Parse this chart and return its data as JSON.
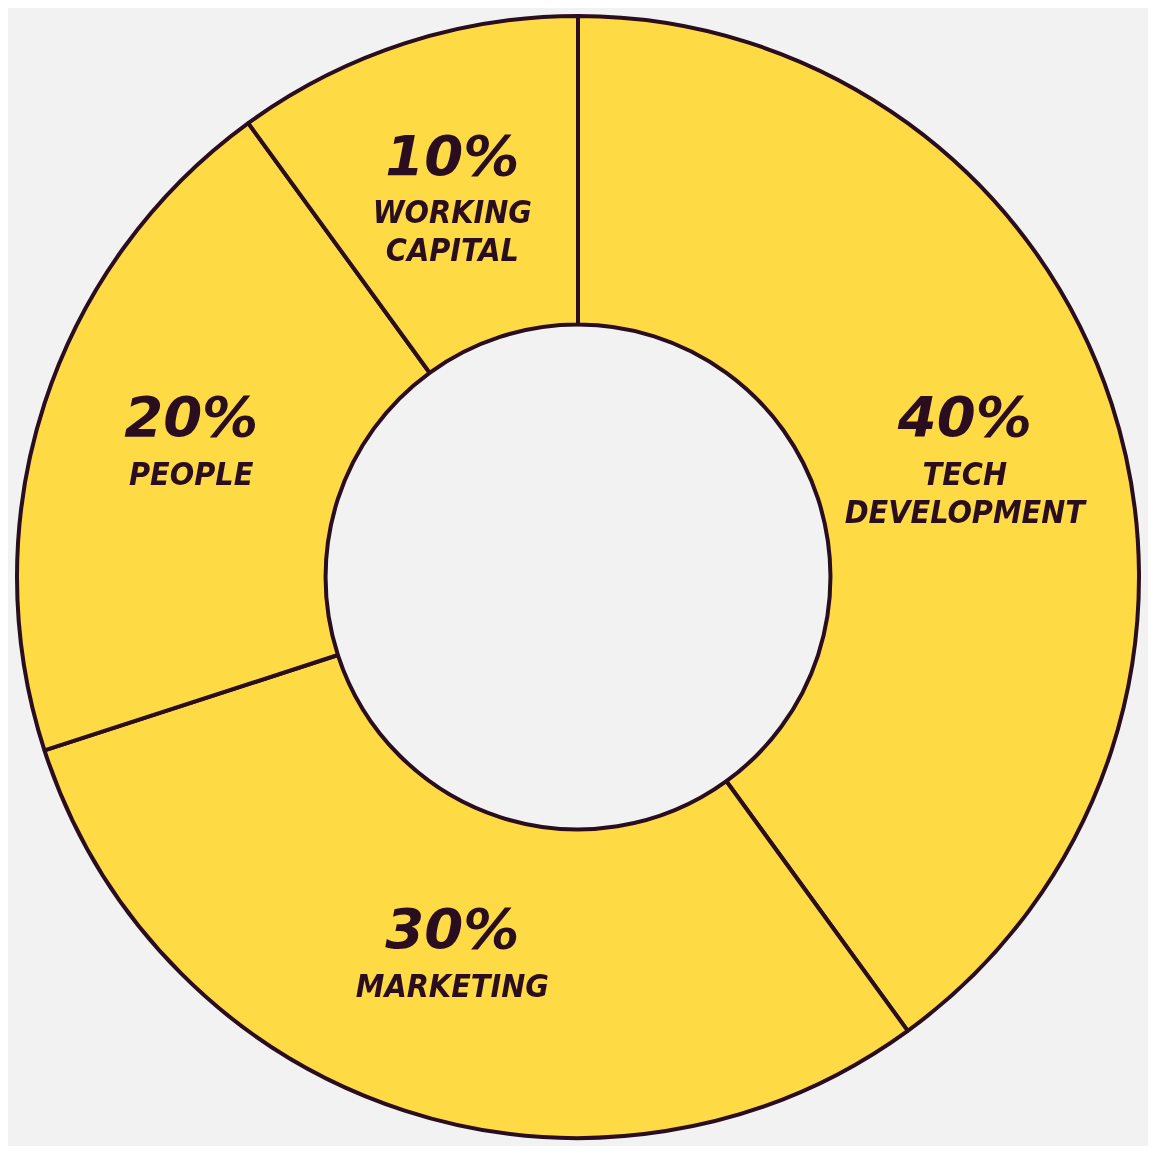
{
  "chart_data": {
    "type": "donut",
    "categories": [
      "TECH DEVELOPMENT",
      "MARKETING",
      "PEOPLE",
      "WORKING CAPITAL"
    ],
    "values": [
      40,
      30,
      20,
      10
    ],
    "colors": [
      "#fedb45",
      "#fedb45",
      "#fedb45",
      "#fedb45"
    ],
    "value_labels": [
      "40%",
      "30%",
      "20%",
      "10%"
    ],
    "legend": false
  }
}
